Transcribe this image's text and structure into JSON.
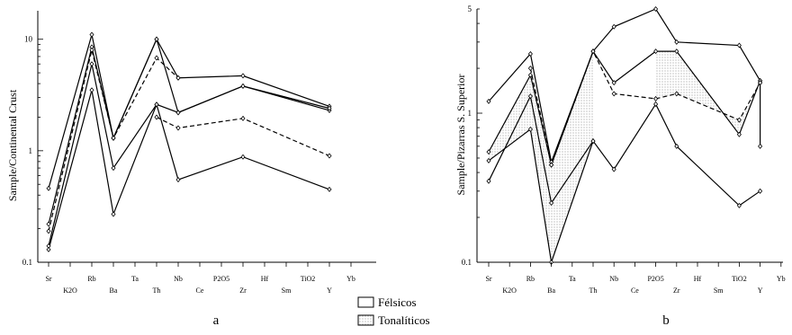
{
  "chart_data": [
    {
      "type": "line",
      "panel_label": "a",
      "ylabel": "Sample/Continental Crust",
      "yscale": "log",
      "ylim": [
        0.1,
        18
      ],
      "yticks": [
        {
          "value": 0.1,
          "label": "0.1"
        },
        {
          "value": 1,
          "label": "1"
        },
        {
          "value": 10,
          "label": "10"
        }
      ],
      "categories": [
        "Sr",
        "K2O",
        "Rb",
        "Ba",
        "Ta",
        "Th",
        "Nb",
        "Ce",
        "P2O5",
        "Zr",
        "Hf",
        "Sm",
        "TiO2",
        "Y",
        "Yb"
      ],
      "series": [
        {
          "group": "felsicos",
          "dashed": false,
          "points": [
            [
              "Sr",
              0.46
            ],
            [
              "Rb",
              11.0
            ],
            [
              "Ba",
              1.3
            ],
            [
              "Th",
              10.0
            ],
            [
              "Nb",
              4.5
            ],
            [
              "Zr",
              4.7
            ],
            [
              "Y",
              2.5
            ]
          ]
        },
        {
          "group": "felsicos",
          "dashed": false,
          "points": [
            [
              "Sr",
              0.22
            ],
            [
              "Rb",
              8.5
            ],
            [
              "Ba",
              1.3
            ],
            [
              "Th",
              10.0
            ],
            [
              "Nb",
              2.2
            ],
            [
              "Zr",
              3.8
            ],
            [
              "Y",
              2.3
            ]
          ]
        },
        {
          "group": "felsicos",
          "dashed": false,
          "points": [
            [
              "Sr",
              0.14
            ],
            [
              "Rb",
              6.0
            ],
            [
              "Ba",
              0.7
            ],
            [
              "Th",
              2.6
            ],
            [
              "Nb",
              0.55
            ],
            [
              "Zr",
              0.88
            ],
            [
              "Y",
              0.45
            ]
          ]
        },
        {
          "group": "felsicos",
          "dashed": false,
          "points": [
            [
              "Sr",
              0.13
            ],
            [
              "Rb",
              3.5
            ],
            [
              "Ba",
              0.27
            ],
            [
              "Th",
              2.6
            ],
            [
              "Nb",
              2.2
            ],
            [
              "Zr",
              3.8
            ],
            [
              "Y",
              2.4
            ]
          ]
        },
        {
          "group": "felsicos",
          "dashed": true,
          "points": [
            [
              "Sr",
              0.19
            ],
            [
              "Rb",
              8.0
            ],
            [
              "Ba",
              1.3
            ],
            [
              "Th",
              6.8
            ],
            [
              "Nb",
              4.5
            ]
          ]
        },
        {
          "group": "tonaliticos",
          "dashed": true,
          "points": [
            [
              "Th",
              2.0
            ],
            [
              "Nb",
              1.6
            ],
            [
              "Zr",
              1.95
            ],
            [
              "Y",
              0.9
            ]
          ]
        }
      ]
    },
    {
      "type": "line",
      "panel_label": "b",
      "ylabel": "Sample/Pizarras S. Superior",
      "yscale": "log",
      "ylim": [
        0.1,
        5
      ],
      "yticks": [
        {
          "value": 0.1,
          "label": "0.1"
        },
        {
          "value": 1,
          "label": "1"
        },
        {
          "value": 5,
          "label": "5"
        }
      ],
      "categories": [
        "Sr",
        "K2O",
        "Rb",
        "Ba",
        "Ta",
        "Th",
        "Nb",
        "Ce",
        "P2O5",
        "Zr",
        "Hf",
        "Sm",
        "TiO2",
        "Y",
        "Yb"
      ],
      "series": [
        {
          "group": "felsicos",
          "dashed": false,
          "points": [
            [
              "Sr",
              1.2
            ],
            [
              "Rb",
              2.5
            ],
            [
              "Ba",
              0.47
            ],
            [
              "Th",
              2.6
            ],
            [
              "Nb",
              3.8
            ],
            [
              "P2O5",
              5.0
            ],
            [
              "Zr",
              3.0
            ],
            [
              "TiO2",
              2.85
            ],
            [
              "Y",
              1.65
            ]
          ]
        },
        {
          "group": "felsicos",
          "dashed": false,
          "points": [
            [
              "Sr",
              0.55
            ],
            [
              "Rb",
              1.8
            ],
            [
              "Ba",
              0.45
            ],
            [
              "Th",
              2.6
            ],
            [
              "Nb",
              1.6
            ],
            [
              "P2O5",
              2.6
            ],
            [
              "Zr",
              2.6
            ],
            [
              "TiO2",
              0.72
            ],
            [
              "Y",
              1.65
            ]
          ]
        },
        {
          "group": "felsicos",
          "dashed": false,
          "points": [
            [
              "Sr",
              0.35
            ],
            [
              "Rb",
              1.3
            ],
            [
              "Ba",
              0.25
            ],
            [
              "Th",
              0.65
            ],
            [
              "Nb",
              0.42
            ],
            [
              "P2O5",
              1.15
            ],
            [
              "Zr",
              0.6
            ],
            [
              "TiO2",
              0.24
            ],
            [
              "Y",
              0.3
            ]
          ]
        },
        {
          "group": "felsicos",
          "dashed": true,
          "points": [
            [
              "Rb",
              2.0
            ],
            [
              "Ba",
              0.45
            ],
            [
              "Th",
              2.6
            ],
            [
              "Nb",
              1.35
            ],
            [
              "P2O5",
              1.25
            ],
            [
              "Zr",
              1.35
            ],
            [
              "TiO2",
              0.9
            ],
            [
              "Y",
              1.6
            ]
          ]
        },
        {
          "group": "tonaliticos",
          "dashed": false,
          "points": [
            [
              "Sr",
              0.48
            ],
            [
              "Rb",
              0.78
            ],
            [
              "Ba",
              0.1
            ],
            [
              "Th",
              0.65
            ]
          ]
        },
        {
          "group": "tonaliticos",
          "dashed": false,
          "points": [
            [
              "Y",
              1.6
            ],
            [
              "Y",
              0.6
            ]
          ]
        }
      ]
    }
  ],
  "legend": [
    {
      "label": "Félsicos",
      "swatch": "white"
    },
    {
      "label": "Tonalíticos",
      "swatch": "dotted"
    }
  ]
}
